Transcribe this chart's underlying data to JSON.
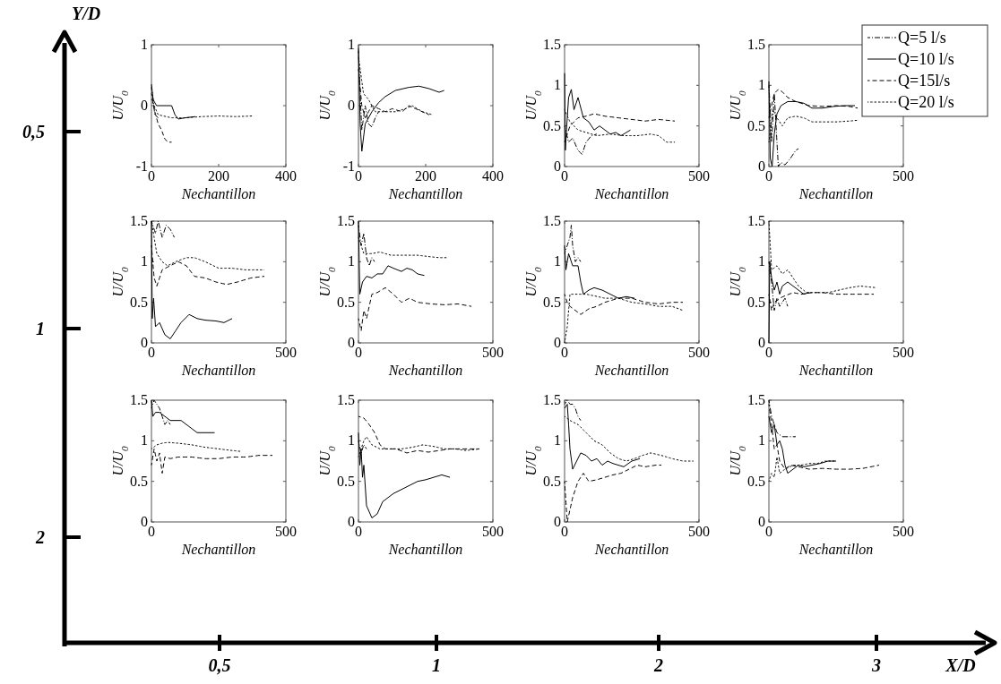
{
  "chart_data": [
    {
      "type": "line",
      "xlabel": "Nechantillon",
      "ylabel": "U/U$_{0}$",
      "xlim": [
        0,
        400
      ],
      "xticks": [
        0,
        200,
        400
      ],
      "ylim": [
        -1,
        1
      ],
      "yticks": [
        -1,
        0,
        1
      ],
      "series": [
        {
          "color": "#000000",
          "line_style": "dashdot",
          "x": [
            0,
            5,
            10,
            20
          ],
          "values": [
            0.3,
            0.1,
            -0.15,
            -0.2
          ]
        },
        {
          "color": "#000000",
          "line_style": "solid",
          "x": [
            0,
            5,
            15,
            40,
            60,
            70,
            80,
            100,
            130
          ],
          "values": [
            0.35,
            0.1,
            0,
            0,
            0,
            -0.15,
            -0.22,
            -0.2,
            -0.18
          ]
        },
        {
          "color": "#000000",
          "line_style": "dashed",
          "x": [
            0,
            10,
            20,
            30,
            40,
            50,
            60
          ],
          "values": [
            0.2,
            -0.1,
            -0.3,
            -0.4,
            -0.55,
            -0.6,
            -0.6
          ]
        },
        {
          "color": "#000000",
          "line_style": "dotted",
          "x": [
            0,
            20,
            60,
            100,
            150,
            200,
            250,
            300
          ],
          "values": [
            0.1,
            -0.15,
            -0.2,
            -0.2,
            -0.18,
            -0.17,
            -0.18,
            -0.17
          ]
        }
      ]
    },
    {
      "type": "line",
      "xlabel": "Nechantillon",
      "ylabel": "U/U$_{0}$",
      "xlim": [
        0,
        400
      ],
      "xticks": [
        0,
        200,
        400
      ],
      "ylim": [
        -1,
        1
      ],
      "yticks": [
        -1,
        0,
        1
      ],
      "series": [
        {
          "color": "#000000",
          "line_style": "dashdot",
          "x": [
            0,
            5,
            10,
            20,
            30,
            40,
            50,
            60
          ],
          "values": [
            0.9,
            0.2,
            -0.4,
            0,
            -0.3,
            -0.35,
            -0.2,
            -0.1
          ]
        },
        {
          "color": "#000000",
          "line_style": "solid",
          "x": [
            0,
            5,
            10,
            20,
            40,
            60,
            80,
            110,
            150,
            180,
            210,
            240,
            255
          ],
          "values": [
            0.95,
            -0.3,
            -0.75,
            -0.3,
            -0.1,
            0.05,
            0.15,
            0.25,
            0.3,
            0.32,
            0.28,
            0.22,
            0.25
          ]
        },
        {
          "color": "#000000",
          "line_style": "dashed",
          "x": [
            0,
            10,
            20,
            40,
            60,
            80,
            100,
            130,
            150,
            170,
            190,
            210
          ],
          "values": [
            0.6,
            0,
            -0.2,
            0,
            -0.05,
            -0.1,
            -0.05,
            -0.1,
            0,
            -0.05,
            -0.1,
            -0.15
          ]
        },
        {
          "color": "#000000",
          "line_style": "dotted",
          "x": [
            0,
            15,
            30,
            50,
            80,
            110,
            140,
            160,
            190,
            220
          ],
          "values": [
            0.8,
            0.2,
            0.1,
            -0.1,
            -0.1,
            -0.1,
            -0.05,
            0,
            -0.1,
            -0.15
          ]
        }
      ]
    },
    {
      "type": "line",
      "xlabel": "Nechantillon",
      "ylabel": "U/U$_{0}$",
      "xlim": [
        0,
        500
      ],
      "xticks": [
        0,
        500
      ],
      "ylim": [
        0,
        1.5
      ],
      "yticks": [
        0,
        0.5,
        1,
        1.5
      ],
      "series": [
        {
          "color": "#000000",
          "line_style": "dashdot",
          "x": [
            0,
            15,
            30,
            50,
            65,
            80,
            100,
            120
          ],
          "values": [
            0.5,
            0.3,
            0.35,
            0.2,
            0.15,
            0.3,
            0.38,
            0.4
          ]
        },
        {
          "color": "#000000",
          "line_style": "solid",
          "x": [
            0,
            3,
            8,
            15,
            25,
            35,
            50,
            70,
            90,
            110,
            130,
            150,
            170,
            190,
            210,
            245
          ],
          "values": [
            1.15,
            0.2,
            0.5,
            0.85,
            0.95,
            0.7,
            0.85,
            0.6,
            0.55,
            0.45,
            0.5,
            0.45,
            0.4,
            0.42,
            0.38,
            0.45
          ]
        },
        {
          "color": "#000000",
          "line_style": "dashed",
          "x": [
            0,
            20,
            50,
            80,
            110,
            150,
            200,
            250,
            300,
            350,
            410
          ],
          "values": [
            0.3,
            0.5,
            0.6,
            0.62,
            0.65,
            0.62,
            0.6,
            0.58,
            0.56,
            0.58,
            0.56
          ]
        },
        {
          "color": "#000000",
          "line_style": "dotted",
          "x": [
            0,
            20,
            50,
            80,
            120,
            170,
            220,
            270,
            320,
            350,
            380,
            410
          ],
          "values": [
            0.7,
            0.55,
            0.45,
            0.42,
            0.38,
            0.4,
            0.38,
            0.38,
            0.4,
            0.38,
            0.3,
            0.3
          ]
        }
      ]
    },
    {
      "type": "line",
      "xlabel": "Nechantillon",
      "ylabel": "U/U$_{0}$",
      "xlim": [
        0,
        500
      ],
      "xticks": [
        0,
        500
      ],
      "ylim": [
        0,
        1.5
      ],
      "yticks": [
        0,
        0.5,
        1,
        1.5
      ],
      "legend": "top right",
      "series": [
        {
          "name": "Q=5 l/s",
          "color": "#000000",
          "line_style": "dashdot",
          "x": [
            0,
            5,
            10,
            20,
            30,
            35,
            45,
            60,
            80,
            100,
            110
          ],
          "values": [
            1,
            0.7,
            0.3,
            0.9,
            0.3,
            0,
            0.05,
            0.02,
            0.1,
            0.2,
            0.22
          ]
        },
        {
          "name": "Q=10 l/s",
          "color": "#000000",
          "line_style": "solid",
          "x": [
            0,
            5,
            12,
            20,
            30,
            45,
            70,
            100,
            130,
            160,
            200,
            240,
            280,
            320
          ],
          "values": [
            1.05,
            0.1,
            0,
            0.4,
            0.65,
            0.75,
            0.8,
            0.8,
            0.78,
            0.72,
            0.72,
            0.74,
            0.75,
            0.75
          ]
        },
        {
          "name": "Q=15l/s",
          "color": "#000000",
          "line_style": "dashed",
          "x": [
            0,
            20,
            35,
            50,
            70,
            100,
            150,
            200,
            250,
            300,
            330
          ],
          "values": [
            0.6,
            0.9,
            0.95,
            0.92,
            0.85,
            0.8,
            0.75,
            0.74,
            0.75,
            0.74,
            0.72
          ]
        },
        {
          "name": "Q=20 l/s",
          "color": "#000000",
          "line_style": "dotted",
          "x": [
            0,
            15,
            30,
            50,
            70,
            100,
            130,
            160,
            200,
            250,
            300,
            330
          ],
          "values": [
            0.3,
            0.7,
            0.6,
            0.5,
            0.6,
            0.62,
            0.6,
            0.55,
            0.55,
            0.55,
            0.56,
            0.57
          ]
        }
      ]
    },
    {
      "type": "line",
      "xlabel": "Nechantillon",
      "ylabel": "U/U$_{0}$",
      "xlim": [
        0,
        500
      ],
      "xticks": [
        0,
        500
      ],
      "ylim": [
        0,
        1.5
      ],
      "yticks": [
        0,
        0.5,
        1,
        1.5
      ],
      "series": [
        {
          "color": "#000000",
          "line_style": "dashdot",
          "x": [
            0,
            15,
            25,
            40,
            55,
            70,
            85
          ],
          "values": [
            1.5,
            1.35,
            1.5,
            1.3,
            1.45,
            1.4,
            1.3
          ]
        },
        {
          "color": "#000000",
          "line_style": "solid",
          "x": [
            0,
            3,
            8,
            15,
            30,
            50,
            70,
            90,
            110,
            140,
            170,
            200,
            240,
            270,
            300
          ],
          "values": [
            1.5,
            0.3,
            0.55,
            0.2,
            0.25,
            0.1,
            0.05,
            0.15,
            0.25,
            0.35,
            0.3,
            0.28,
            0.27,
            0.25,
            0.3
          ]
        },
        {
          "color": "#000000",
          "line_style": "dashed",
          "x": [
            0,
            10,
            20,
            40,
            70,
            100,
            130,
            160,
            200,
            240,
            280,
            320,
            370,
            420
          ],
          "values": [
            1.2,
            0.8,
            0.7,
            0.9,
            0.95,
            1,
            0.95,
            0.82,
            0.8,
            0.75,
            0.72,
            0.75,
            0.8,
            0.82
          ]
        },
        {
          "color": "#000000",
          "line_style": "dotted",
          "x": [
            0,
            20,
            40,
            60,
            90,
            130,
            160,
            200,
            250,
            300,
            350,
            420
          ],
          "values": [
            1.5,
            1.1,
            1,
            0.95,
            1,
            1.05,
            1.05,
            1,
            0.92,
            0.92,
            0.9,
            0.9
          ]
        }
      ]
    },
    {
      "type": "line",
      "xlabel": "Nechantillon",
      "ylabel": "U/U$_{0}$",
      "xlim": [
        0,
        500
      ],
      "xticks": [
        0,
        500
      ],
      "ylim": [
        0,
        1.5
      ],
      "yticks": [
        0,
        0.5,
        1,
        1.5
      ],
      "series": [
        {
          "color": "#000000",
          "line_style": "dashdot",
          "x": [
            0,
            10,
            20,
            30,
            40,
            50,
            60
          ],
          "values": [
            1.45,
            1.2,
            1.35,
            1.05,
            0.95,
            1.05,
            1
          ]
        },
        {
          "color": "#000000",
          "line_style": "solid",
          "x": [
            0,
            5,
            15,
            30,
            50,
            70,
            90,
            110,
            130,
            160,
            180,
            200,
            220,
            245
          ],
          "values": [
            1.5,
            0.6,
            0.75,
            0.82,
            0.8,
            0.85,
            0.85,
            0.95,
            0.92,
            0.88,
            0.92,
            0.9,
            0.85,
            0.83
          ]
        },
        {
          "color": "#000000",
          "line_style": "dashed",
          "x": [
            0,
            10,
            20,
            30,
            50,
            70,
            100,
            130,
            160,
            190,
            220,
            270,
            320,
            370,
            420
          ],
          "values": [
            0.3,
            0.15,
            0.4,
            0.3,
            0.6,
            0.62,
            0.68,
            0.6,
            0.5,
            0.55,
            0.5,
            0.48,
            0.47,
            0.48,
            0.45
          ]
        },
        {
          "color": "#000000",
          "line_style": "dotted",
          "x": [
            0,
            20,
            50,
            80,
            120,
            170,
            220,
            270,
            300,
            330
          ],
          "values": [
            1.3,
            1.1,
            1.1,
            1.12,
            1.08,
            1.08,
            1.08,
            1.06,
            1.05,
            1.05
          ]
        }
      ]
    },
    {
      "type": "line",
      "xlabel": "Nechantillon",
      "ylabel": "U/U$_{0}$",
      "xlim": [
        0,
        500
      ],
      "xticks": [
        0,
        500
      ],
      "ylim": [
        0,
        1.5
      ],
      "yticks": [
        0,
        0.5,
        1,
        1.5
      ],
      "series": [
        {
          "color": "#000000",
          "line_style": "dashdot",
          "x": [
            0,
            10,
            20,
            25,
            30,
            40,
            50,
            60
          ],
          "values": [
            1.1,
            1.2,
            1.3,
            1.45,
            1.2,
            1,
            1.05,
            1
          ]
        },
        {
          "color": "#000000",
          "line_style": "solid",
          "x": [
            0,
            5,
            15,
            30,
            50,
            60,
            70,
            90,
            110,
            140,
            170,
            200,
            230,
            260
          ],
          "values": [
            1.2,
            0.9,
            1.1,
            0.95,
            0.95,
            0.75,
            0.6,
            0.65,
            0.68,
            0.65,
            0.6,
            0.55,
            0.57,
            0.55
          ]
        },
        {
          "color": "#000000",
          "line_style": "dashed",
          "x": [
            0,
            10,
            20,
            40,
            60,
            90,
            120,
            150,
            200,
            250,
            300,
            350,
            400,
            440
          ],
          "values": [
            0.6,
            0.5,
            0.45,
            0.4,
            0.35,
            0.42,
            0.45,
            0.5,
            0.55,
            0.55,
            0.5,
            0.48,
            0.5,
            0.5
          ]
        },
        {
          "color": "#000000",
          "line_style": "dotted",
          "x": [
            0,
            10,
            20,
            50,
            80,
            110,
            150,
            200,
            250,
            300,
            350,
            400,
            440
          ],
          "values": [
            0,
            0.2,
            0.6,
            0.6,
            0.6,
            0.58,
            0.55,
            0.55,
            0.5,
            0.48,
            0.45,
            0.45,
            0.4
          ]
        }
      ]
    },
    {
      "type": "line",
      "xlabel": "Nechantillon",
      "ylabel": "U/U$_{0}$",
      "xlim": [
        0,
        500
      ],
      "xticks": [
        0,
        500
      ],
      "ylim": [
        0,
        1.5
      ],
      "yticks": [
        0,
        0.5,
        1,
        1.5
      ],
      "series": [
        {
          "color": "#000000",
          "line_style": "dashdot",
          "x": [
            0,
            10,
            20,
            30,
            40,
            50,
            60,
            70
          ],
          "values": [
            1,
            0.75,
            0.4,
            0.55,
            0.45,
            0.5,
            0.55,
            0.45
          ]
        },
        {
          "color": "#000000",
          "line_style": "solid",
          "x": [
            0,
            3,
            10,
            20,
            30,
            40,
            50,
            70,
            90,
            110,
            130,
            150
          ],
          "values": [
            0,
            1,
            0.8,
            0.65,
            0.75,
            0.6,
            0.7,
            0.75,
            0.7,
            0.65,
            0.6,
            0.62
          ]
        },
        {
          "color": "#000000",
          "line_style": "dashed",
          "x": [
            0,
            10,
            20,
            40,
            60,
            90,
            120,
            160,
            200,
            250,
            300,
            350,
            390
          ],
          "values": [
            0.6,
            0.4,
            0.5,
            0.55,
            0.58,
            0.62,
            0.6,
            0.62,
            0.62,
            0.6,
            0.6,
            0.6,
            0.6
          ]
        },
        {
          "color": "#000000",
          "line_style": "dotted",
          "x": [
            0,
            10,
            30,
            50,
            70,
            90,
            110,
            140,
            180,
            220,
            260,
            300,
            340,
            400
          ],
          "values": [
            1.5,
            0.9,
            0.95,
            0.85,
            0.9,
            0.8,
            0.7,
            0.62,
            0.62,
            0.62,
            0.65,
            0.68,
            0.7,
            0.68
          ]
        }
      ]
    },
    {
      "type": "line",
      "xlabel": "Nechantillon",
      "ylabel": "U/U$_{0}$",
      "xlim": [
        0,
        500
      ],
      "xticks": [
        0,
        500
      ],
      "ylim": [
        0,
        1.5
      ],
      "yticks": [
        0,
        0.5,
        1,
        1.5
      ],
      "series": [
        {
          "color": "#000000",
          "line_style": "dashdot",
          "x": [
            0,
            10,
            20,
            30,
            40,
            50,
            60,
            70
          ],
          "values": [
            1.4,
            1.5,
            1.45,
            1.4,
            1.3,
            1.2,
            1.25,
            1.2
          ]
        },
        {
          "color": "#000000",
          "line_style": "solid",
          "x": [
            0,
            5,
            15,
            30,
            50,
            70,
            90,
            110,
            130,
            150,
            170,
            190,
            235
          ],
          "values": [
            1.5,
            1.3,
            1.35,
            1.35,
            1.3,
            1.25,
            1.25,
            1.25,
            1.2,
            1.15,
            1.1,
            1.1,
            1.1
          ]
        },
        {
          "color": "#000000",
          "line_style": "dashed",
          "x": [
            0,
            10,
            20,
            30,
            40,
            50,
            70,
            100,
            150,
            200,
            250,
            300,
            350,
            400,
            450
          ],
          "values": [
            0.7,
            0.9,
            0.75,
            0.85,
            0.6,
            0.8,
            0.78,
            0.8,
            0.8,
            0.78,
            0.78,
            0.8,
            0.8,
            0.82,
            0.82
          ]
        },
        {
          "color": "#000000",
          "line_style": "dotted",
          "x": [
            0,
            20,
            40,
            60,
            100,
            150,
            200,
            250,
            300,
            330
          ],
          "values": [
            0.9,
            0.95,
            0.97,
            0.98,
            0.97,
            0.95,
            0.92,
            0.9,
            0.88,
            0.87
          ]
        }
      ]
    },
    {
      "type": "line",
      "xlabel": "Nechantillon",
      "ylabel": "U/U$_{0}$",
      "xlim": [
        0,
        500
      ],
      "xticks": [
        0,
        500
      ],
      "ylim": [
        0,
        1.5
      ],
      "yticks": [
        0,
        0.5,
        1,
        1.5
      ],
      "series": [
        {
          "color": "#000000",
          "line_style": "dashdot",
          "x": [
            0,
            10,
            20,
            30
          ],
          "values": [
            1,
            0.85,
            0.95,
            0.9
          ]
        },
        {
          "color": "#000000",
          "line_style": "solid",
          "x": [
            0,
            5,
            10,
            15,
            20,
            30,
            50,
            70,
            90,
            110,
            130,
            160,
            190,
            220,
            250,
            280,
            310,
            340
          ],
          "values": [
            1.1,
            0.7,
            0.9,
            0.55,
            0.7,
            0.2,
            0.05,
            0.1,
            0.25,
            0.3,
            0.35,
            0.4,
            0.45,
            0.5,
            0.52,
            0.55,
            0.58,
            0.55
          ]
        },
        {
          "color": "#000000",
          "line_style": "dashed",
          "x": [
            0,
            20,
            40,
            60,
            80,
            100,
            140,
            180,
            220,
            260,
            300,
            340,
            400,
            450
          ],
          "values": [
            1.3,
            1.28,
            1.2,
            1.1,
            0.95,
            0.9,
            0.9,
            0.85,
            0.88,
            0.86,
            0.88,
            0.9,
            0.9,
            0.9
          ]
        },
        {
          "color": "#000000",
          "line_style": "dotted",
          "x": [
            0,
            20,
            30,
            50,
            80,
            120,
            160,
            200,
            240,
            280,
            320,
            360,
            400,
            450
          ],
          "values": [
            0.8,
            1,
            1.05,
            0.95,
            0.9,
            0.9,
            0.9,
            0.92,
            0.95,
            0.93,
            0.9,
            0.9,
            0.88,
            0.9
          ]
        }
      ]
    },
    {
      "type": "line",
      "xlabel": "Nechantillon",
      "ylabel": "U/U$_{0}$",
      "xlim": [
        0,
        500
      ],
      "xticks": [
        0,
        500
      ],
      "ylim": [
        0,
        1.5
      ],
      "yticks": [
        0,
        0.5,
        1,
        1.5
      ],
      "series": [
        {
          "color": "#000000",
          "line_style": "dashdot",
          "x": [
            0,
            10,
            20,
            30,
            40,
            50,
            60
          ],
          "values": [
            1.45,
            1.5,
            1.45,
            1.45,
            1.4,
            1.3,
            1.25
          ]
        },
        {
          "color": "#000000",
          "line_style": "solid",
          "x": [
            0,
            10,
            15,
            20,
            30,
            45,
            60,
            80,
            100,
            120,
            140,
            160,
            180,
            200,
            220,
            250,
            280
          ],
          "values": [
            1.4,
            1.45,
            1.2,
            0.9,
            0.65,
            0.75,
            0.85,
            0.82,
            0.75,
            0.78,
            0.7,
            0.75,
            0.72,
            0.7,
            0.68,
            0.75,
            0.78
          ]
        },
        {
          "color": "#000000",
          "line_style": "dashed",
          "x": [
            0,
            10,
            20,
            30,
            50,
            70,
            90,
            120,
            150,
            180,
            210,
            240,
            270,
            300,
            340,
            360
          ],
          "values": [
            0.5,
            0,
            0.15,
            0.3,
            0.5,
            0.6,
            0.5,
            0.52,
            0.55,
            0.58,
            0.6,
            0.65,
            0.7,
            0.68,
            0.7,
            0.7
          ]
        },
        {
          "color": "#000000",
          "line_style": "dotted",
          "x": [
            0,
            20,
            50,
            80,
            110,
            140,
            170,
            200,
            230,
            260,
            290,
            320,
            360,
            400,
            440,
            480
          ],
          "values": [
            1.3,
            1.25,
            1.2,
            1.1,
            1,
            0.95,
            0.85,
            0.78,
            0.75,
            0.78,
            0.82,
            0.85,
            0.82,
            0.78,
            0.75,
            0.75
          ]
        }
      ]
    },
    {
      "type": "line",
      "xlabel": "Nechantillon",
      "ylabel": "U/U$_{0}$",
      "xlim": [
        0,
        500
      ],
      "xticks": [
        0,
        500
      ],
      "ylim": [
        0,
        1.5
      ],
      "yticks": [
        0,
        0.5,
        1,
        1.5
      ],
      "series": [
        {
          "color": "#000000",
          "line_style": "dashdot",
          "x": [
            0,
            10,
            20,
            30,
            50,
            70,
            90,
            100
          ],
          "values": [
            1.5,
            1.3,
            1.2,
            1.1,
            1.05,
            1.05,
            1.05,
            1.05
          ]
        },
        {
          "color": "#000000",
          "line_style": "solid",
          "x": [
            0,
            10,
            20,
            30,
            40,
            50,
            60,
            70,
            90,
            110,
            130,
            160,
            190,
            220,
            250
          ],
          "values": [
            1.3,
            1.1,
            1.2,
            0.95,
            1,
            0.9,
            0.7,
            0.6,
            0.65,
            0.7,
            0.68,
            0.7,
            0.72,
            0.75,
            0.75
          ]
        },
        {
          "color": "#000000",
          "line_style": "dashed",
          "x": [
            0,
            10,
            20,
            30,
            40,
            60,
            80,
            110,
            150,
            200,
            250,
            300,
            350,
            410
          ],
          "values": [
            1.45,
            1.2,
            0.9,
            0.95,
            0.75,
            0.65,
            0.7,
            0.68,
            0.65,
            0.66,
            0.65,
            0.65,
            0.66,
            0.7
          ]
        },
        {
          "color": "#000000",
          "line_style": "dotted",
          "x": [
            0,
            10,
            20,
            30,
            40,
            60,
            90,
            120,
            150,
            180,
            210,
            250
          ],
          "values": [
            0.5,
            0.6,
            0.55,
            0.8,
            0.6,
            0.65,
            0.7,
            0.7,
            0.72,
            0.72,
            0.75,
            0.75
          ]
        }
      ]
    },
    {
      "type": "other",
      "xlabel": "X/D",
      "ylabel": "Y/D",
      "categories": [
        "0,5",
        "1",
        "2",
        "3"
      ],
      "annotations": [
        "0,5",
        "1",
        "2"
      ]
    }
  ]
}
